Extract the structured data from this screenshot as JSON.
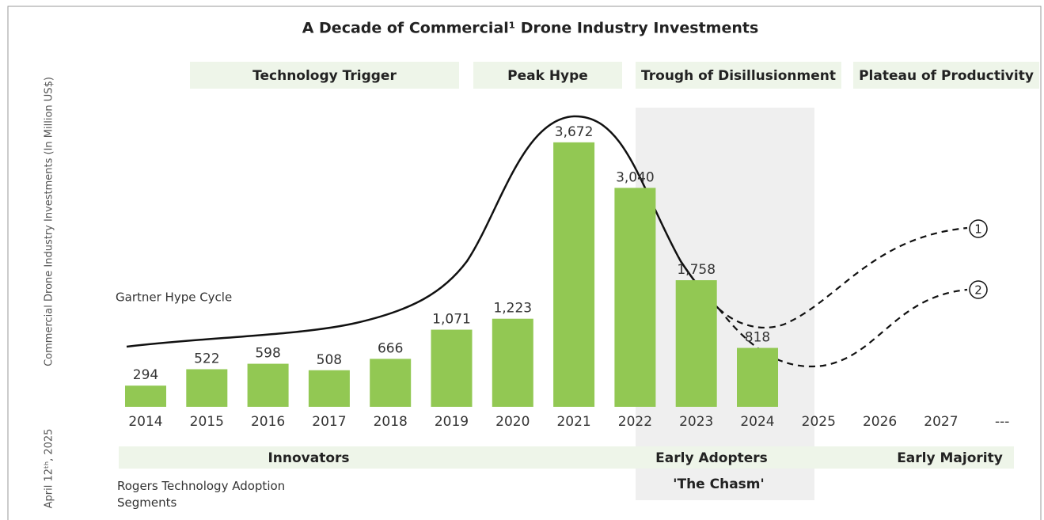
{
  "chart_data": {
    "type": "bar",
    "title": "A Decade of Commercial¹ Drone Industry Investments",
    "y_label": "Commercial Drone Industry Investments (In Million US$)",
    "date": "April 12ᵗʰ, 2025",
    "categories": [
      "2014",
      "2015",
      "2016",
      "2017",
      "2018",
      "2019",
      "2020",
      "2021",
      "2022",
      "2023",
      "2024",
      "2025",
      "2026",
      "2027",
      "---"
    ],
    "values": [
      294,
      522,
      598,
      508,
      666,
      1071,
      1223,
      3672,
      3040,
      1758,
      818,
      null,
      null,
      null,
      null
    ],
    "value_labels": [
      "294",
      "522",
      "598",
      "508",
      "666",
      "1,071",
      "1,223",
      "3,672",
      "3,040",
      "1,758",
      "818",
      null,
      null,
      null,
      null
    ],
    "color": "#92c853",
    "ylim": [
      0,
      4000
    ],
    "hype_cycle_label": "Gartner Hype Cycle",
    "hype_phases": [
      "Technology Trigger",
      "Peak Hype",
      "Trough of Disillusionment",
      "Plateau of Productivity"
    ],
    "adoption_label": "Rogers Technology Adoption Segments",
    "adoption_segments": [
      "Innovators",
      "Early Adopters",
      "Early Majority"
    ],
    "chasm": "'The Chasm'",
    "scenarios": [
      "1",
      "2"
    ]
  }
}
